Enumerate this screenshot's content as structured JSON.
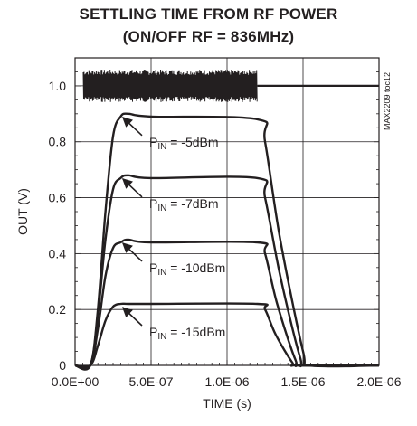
{
  "chart_data": {
    "type": "line",
    "title": "SETTLING TIME FROM RF POWER",
    "subtitle": "(ON/OFF RF = 836MHz)",
    "xlabel": "TIME (s)",
    "ylabel": "OUT (V)",
    "xlim": [
      0,
      2e-06
    ],
    "ylim": [
      0,
      1.1
    ],
    "x_ticks": [
      0,
      5e-07,
      1e-06,
      1.5e-06,
      2e-06
    ],
    "x_tick_labels": [
      "0.0E+00",
      "5.0E-07",
      "1.0E-06",
      "1.5E-06",
      "2.0E-06"
    ],
    "y_ticks": [
      0,
      0.2,
      0.4,
      0.6,
      0.8,
      1.0
    ],
    "y_tick_labels": [
      "0",
      "0.2",
      "0.4",
      "0.6",
      "0.8",
      "1.0"
    ],
    "grid": true,
    "watermark": "MAX2209 toc12",
    "rf_burst": {
      "level": 1.0,
      "on_start": 0,
      "on_end": 1.2e-06
    },
    "series": [
      {
        "label": "-5dBm",
        "level": 0.88,
        "peak": 0.9,
        "x": [
          0,
          1e-07,
          1.5e-07,
          2e-07,
          2.5e-07,
          3e-07,
          3.5e-07,
          5e-07,
          1.2e-06,
          1.25e-06,
          1.35e-06,
          1.5e-06,
          1.55e-06,
          2e-06
        ],
        "y": [
          0,
          0,
          0.2,
          0.55,
          0.82,
          0.89,
          0.9,
          0.89,
          0.88,
          0.8,
          0.45,
          0.05,
          0,
          0
        ]
      },
      {
        "label": "-7dBm",
        "level": 0.67,
        "peak": 0.68,
        "x": [
          0,
          1e-07,
          1.5e-07,
          2e-07,
          2.5e-07,
          3e-07,
          3.5e-07,
          5e-07,
          1.2e-06,
          1.25e-06,
          1.35e-06,
          1.48e-06,
          1.53e-06,
          2e-06
        ],
        "y": [
          0,
          0,
          0.18,
          0.45,
          0.63,
          0.67,
          0.68,
          0.67,
          0.67,
          0.6,
          0.32,
          0.03,
          0,
          0
        ]
      },
      {
        "label": "-10dBm",
        "level": 0.44,
        "peak": 0.45,
        "x": [
          0,
          1e-07,
          1.5e-07,
          2e-07,
          2.5e-07,
          3e-07,
          3.5e-07,
          5e-07,
          1.2e-06,
          1.25e-06,
          1.33e-06,
          1.45e-06,
          1.5e-06,
          2e-06
        ],
        "y": [
          0,
          0,
          0.13,
          0.32,
          0.42,
          0.44,
          0.45,
          0.44,
          0.44,
          0.4,
          0.22,
          0.02,
          0,
          0
        ]
      },
      {
        "label": "-15dBm",
        "level": 0.22,
        "peak": 0.22,
        "x": [
          0,
          1e-07,
          1.5e-07,
          2e-07,
          2.5e-07,
          3e-07,
          3.5e-07,
          5e-07,
          1.2e-06,
          1.25e-06,
          1.32e-06,
          1.43e-06,
          1.47e-06,
          2e-06
        ],
        "y": [
          0,
          0,
          0.07,
          0.16,
          0.21,
          0.22,
          0.22,
          0.22,
          0.22,
          0.2,
          0.11,
          0.01,
          0,
          0
        ]
      }
    ],
    "annotations": [
      {
        "prefix": "P",
        "sub": "IN",
        "text": " = -5dBm"
      },
      {
        "prefix": "P",
        "sub": "IN",
        "text": " = -7dBm"
      },
      {
        "prefix": "P",
        "sub": "IN",
        "text": " = -10dBm"
      },
      {
        "prefix": "P",
        "sub": "IN",
        "text": " = -15dBm"
      }
    ]
  }
}
